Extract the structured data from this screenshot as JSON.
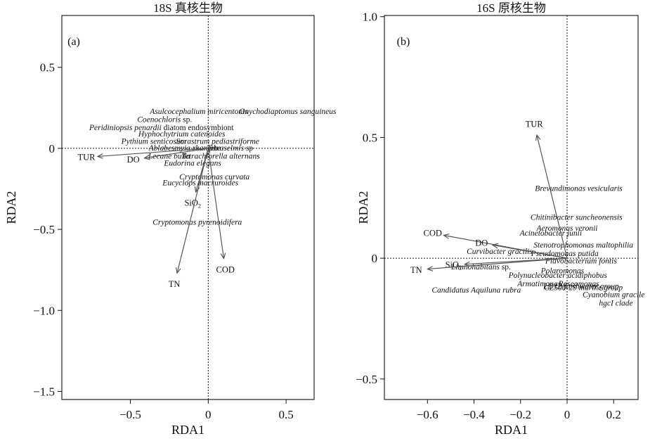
{
  "chart_data": [
    {
      "type": "scatter",
      "title": "18S 真核生物",
      "panel_label": "(a)",
      "xlabel": "RDA1",
      "ylabel": "RDA2",
      "xlim": [
        -0.94,
        0.68
      ],
      "ylim": [
        -1.55,
        0.82
      ],
      "xticks": [
        -0.5,
        0,
        0.5
      ],
      "xtick_labels": [
        "−0.5",
        "0",
        "0.5"
      ],
      "yticks": [
        0.5,
        0,
        -0.5,
        -1.0,
        -1.5
      ],
      "ytick_labels": [
        "0.5",
        "0",
        "−0.5",
        "−1.0",
        "−1.5"
      ],
      "reference_lines": {
        "x": 0,
        "y": 0
      },
      "env_vectors": [
        {
          "name": "TUR",
          "x": -0.71,
          "y": -0.05,
          "label_display": "TUR"
        },
        {
          "name": "DO",
          "x": -0.41,
          "y": -0.06,
          "label_display": "DO"
        },
        {
          "name": "SiO2",
          "x": -0.08,
          "y": -0.27,
          "label_display": "SiO",
          "label_sub": "2"
        },
        {
          "name": "TN",
          "x": -0.2,
          "y": -0.77,
          "label_display": "TN"
        },
        {
          "name": "COD",
          "x": 0.1,
          "y": -0.68,
          "label_display": "COD"
        }
      ],
      "species": [
        {
          "text": "Asulcocephalium miricentonis",
          "x": -0.06,
          "y": 0.23
        },
        {
          "text": "Onychodiaptomus sanguineus",
          "x": 0.51,
          "y": 0.23
        },
        {
          "text": "Coenochloris",
          "suffix": " sp.",
          "x": -0.28,
          "y": 0.18
        },
        {
          "text": "Peridiniopsis penardii",
          "suffix": " diatom endosymbiont",
          "x": -0.3,
          "y": 0.13
        },
        {
          "text": "Hyphochytrium catenoides",
          "x": -0.17,
          "y": 0.09
        },
        {
          "text": "Pythium senticosum",
          "x": -0.35,
          "y": 0.045
        },
        {
          "text": "Sorastrum pediastriforme",
          "x": 0.06,
          "y": 0.045
        },
        {
          "text": "Ablabesmyia rhamphe",
          "x": -0.15,
          "y": 0.005
        },
        {
          "text": "Tetraselmis",
          "suffix": " sp",
          "x": 0.14,
          "y": 0.005
        },
        {
          "text": "Lecane bulla",
          "x": -0.25,
          "y": -0.045
        },
        {
          "text": "Tetrachlorella alternans",
          "x": 0.08,
          "y": -0.045
        },
        {
          "text": "Eudorina elegans",
          "x": -0.1,
          "y": -0.09
        },
        {
          "text": "Cryptomonas curvata",
          "x": 0.04,
          "y": -0.175
        },
        {
          "text": "Eucyclops macruroides",
          "x": -0.05,
          "y": -0.21
        },
        {
          "text": "Cryptomonas pyrenoidifera",
          "x": -0.07,
          "y": -0.455
        }
      ]
    },
    {
      "type": "scatter",
      "title": "16S 原核生物",
      "panel_label": "(b)",
      "xlabel": "RDA1",
      "ylabel": "RDA2",
      "xlim": [
        -0.785,
        0.305
      ],
      "ylim": [
        -0.585,
        1.005
      ],
      "xticks": [
        -0.6,
        -0.4,
        -0.2,
        0,
        0.2
      ],
      "xtick_labels": [
        "−0.6",
        "−0.4",
        "−0.2",
        "0",
        "0.2"
      ],
      "yticks": [
        1.0,
        0.5,
        0,
        -0.5
      ],
      "ytick_labels": [
        "1.0",
        "0.5",
        "0",
        "−0.5"
      ],
      "reference_lines": {
        "x": 0,
        "y": 0
      },
      "env_vectors": [
        {
          "name": "TUR",
          "x": -0.13,
          "y": 0.51,
          "label_display": "TUR"
        },
        {
          "name": "COD",
          "x": -0.53,
          "y": 0.095,
          "label_display": "COD"
        },
        {
          "name": "DO",
          "x": -0.32,
          "y": 0.055,
          "label_display": "DO"
        },
        {
          "name": "SiO2",
          "x": -0.44,
          "y": -0.025,
          "label_display": "SiO",
          "label_sub": "2"
        },
        {
          "name": "TN",
          "x": -0.6,
          "y": -0.045,
          "label_display": "TN"
        }
      ],
      "species": [
        {
          "text": "Brevundimonas vesicularis",
          "x": 0.05,
          "y": 0.29
        },
        {
          "text": "Chitinibacter suncheonensis",
          "x": 0.04,
          "y": 0.17
        },
        {
          "text": "Aeromonas veronii",
          "x": 0.0,
          "y": 0.125
        },
        {
          "text": "Acinetobacter junii",
          "x": -0.07,
          "y": 0.105
        },
        {
          "text": "Stenotrophomonas maltophilia",
          "x": 0.07,
          "y": 0.055
        },
        {
          "text": "Curvibacter gracilis",
          "x": -0.29,
          "y": 0.03
        },
        {
          "text": "Pseudomonas putida",
          "x": -0.01,
          "y": 0.02
        },
        {
          "text": "Flavobacterium fontis",
          "x": 0.06,
          "y": -0.01
        },
        {
          "text": "Limnohabitans",
          "suffix": " sp.",
          "x": -0.37,
          "y": -0.035
        },
        {
          "text": "Polaromonas",
          "x": -0.02,
          "y": -0.05
        },
        {
          "text": "Polynucleobacter acidiphobus",
          "x": -0.04,
          "y": -0.07
        },
        {
          "text": "Armatimonas",
          "x": -0.12,
          "y": -0.105
        },
        {
          "text": "Roseomonas",
          "x": 0.05,
          "y": -0.105
        },
        {
          "text": "LD12 freshwater group",
          "x": 0.06,
          "y": -0.115
        },
        {
          "text": "CL500-29 marine group",
          "x": 0.07,
          "y": -0.12
        },
        {
          "text": "Candidatus Aquiluna rubra",
          "x": -0.39,
          "y": -0.13
        },
        {
          "text": "Cyanobium gracile",
          "x": 0.2,
          "y": -0.15
        },
        {
          "text": "hgcI clade",
          "x": 0.21,
          "y": -0.185
        }
      ]
    }
  ]
}
